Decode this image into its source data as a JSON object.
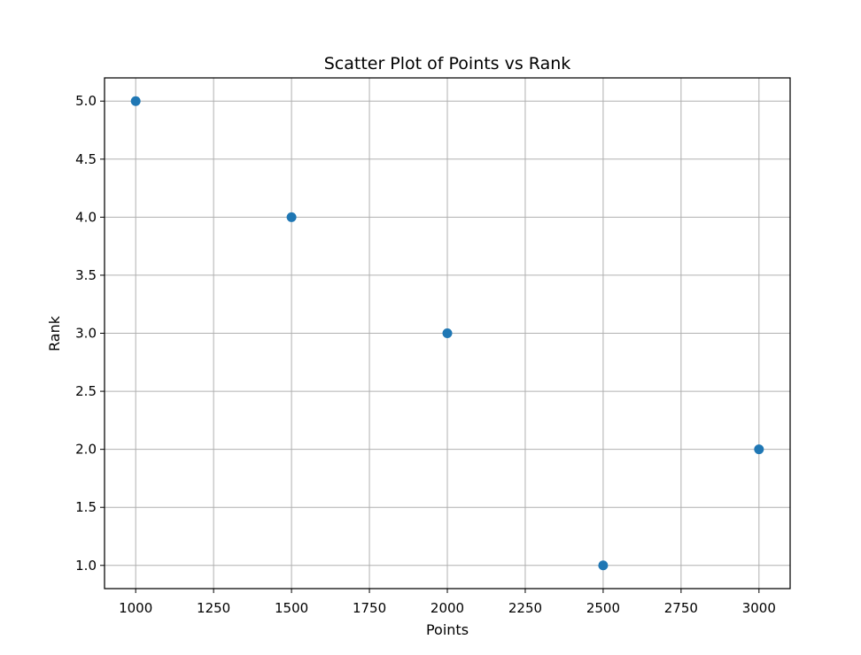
{
  "chart_data": {
    "type": "scatter",
    "title": "Scatter Plot of Points vs Rank",
    "xlabel": "Points",
    "ylabel": "Rank",
    "xlim": [
      900,
      3100
    ],
    "ylim": [
      0.8,
      5.2
    ],
    "xticks": [
      1000,
      1250,
      1500,
      1750,
      2000,
      2250,
      2500,
      2750,
      3000
    ],
    "yticks": [
      1.0,
      1.5,
      2.0,
      2.5,
      3.0,
      3.5,
      4.0,
      4.5,
      5.0
    ],
    "grid": true,
    "legend": "none",
    "series": [
      {
        "x": [
          1000,
          1500,
          2000,
          2500,
          3000
        ],
        "y": [
          5,
          4,
          3,
          1,
          2
        ]
      }
    ],
    "colors": {
      "marker": "#1f77b4",
      "grid": "#b0b0b0",
      "axes": "#000000"
    }
  }
}
